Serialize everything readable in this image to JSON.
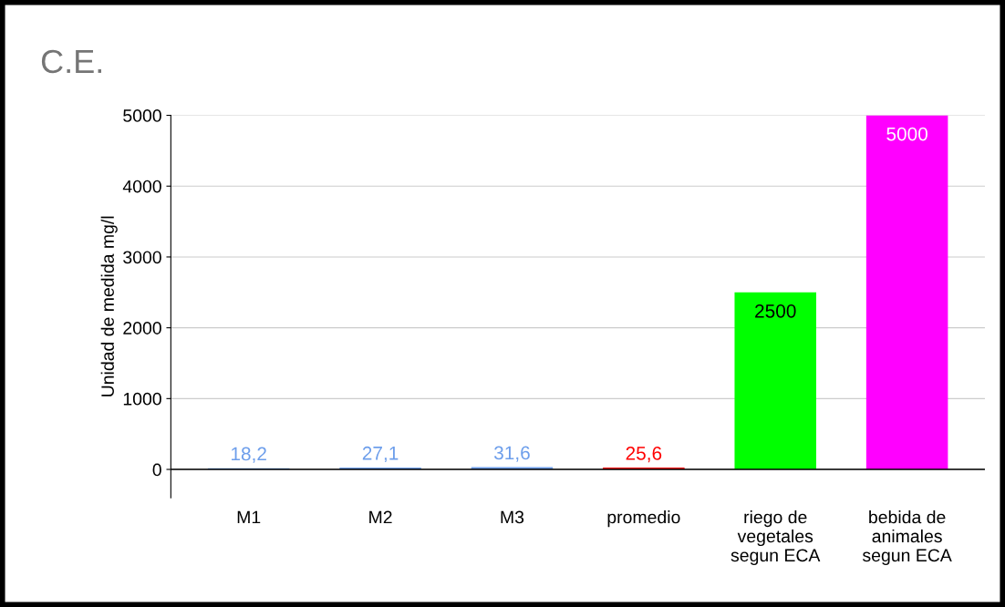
{
  "chart_data": {
    "type": "bar",
    "title": "C.E.",
    "ylabel": "Unidad de medida mg/l",
    "categories": [
      "M1",
      "M2",
      "M3",
      "promedio",
      "riego de\nvegetales\nsegun ECA",
      "bebida de\nanimales\nsegun ECA"
    ],
    "values": [
      18.2,
      27.1,
      31.6,
      25.6,
      2500,
      5000
    ],
    "value_labels": [
      "18,2",
      "27,1",
      "31,6",
      "25,6",
      "2500",
      "5000"
    ],
    "colors": [
      "#6d9eeb",
      "#6d9eeb",
      "#6d9eeb",
      "#ff0000",
      "#00ff00",
      "#ff00ff"
    ],
    "ylim": [
      -400,
      5000
    ],
    "yticks": [
      0,
      1000,
      2000,
      3000,
      4000,
      5000
    ],
    "grid": "y",
    "legend": false
  }
}
